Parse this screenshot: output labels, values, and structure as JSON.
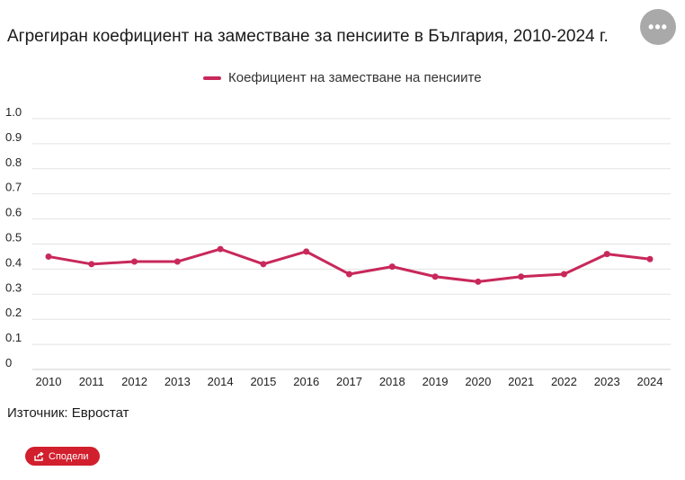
{
  "title": "Агрегиран коефициент на заместване за пенсиите в България, 2010-2024 г.",
  "menu_icon": "more-dots-icon",
  "menu_glyph": "•••",
  "source": "Източник: Евростат",
  "share": {
    "label": "Сподели",
    "icon": "share-icon"
  },
  "colors": {
    "series": "#c8285a",
    "share": "#d21f2d",
    "grid": "#e3e3e3",
    "menu": "#a9a9a9"
  },
  "chart_data": {
    "type": "line",
    "title": "Агрегиран коефициент на заместване за пенсиите в България, 2010-2024 г.",
    "xlabel": "",
    "ylabel": "",
    "categories": [
      "2010",
      "2011",
      "2012",
      "2013",
      "2014",
      "2015",
      "2016",
      "2017",
      "2018",
      "2019",
      "2020",
      "2021",
      "2022",
      "2023",
      "2024"
    ],
    "series": [
      {
        "name": "Коефициент на заместване на пенсиите",
        "values": [
          0.45,
          0.42,
          0.43,
          0.43,
          0.48,
          0.42,
          0.47,
          0.38,
          0.41,
          0.37,
          0.35,
          0.37,
          0.38,
          0.46,
          0.44
        ]
      }
    ],
    "ylim": [
      0,
      1.0
    ],
    "yticks": [
      "0",
      "0.1",
      "0.2",
      "0.3",
      "0.4",
      "0.5",
      "0.6",
      "0.7",
      "0.8",
      "0.9",
      "1.0"
    ],
    "grid": true,
    "legend_position": "top-center"
  }
}
